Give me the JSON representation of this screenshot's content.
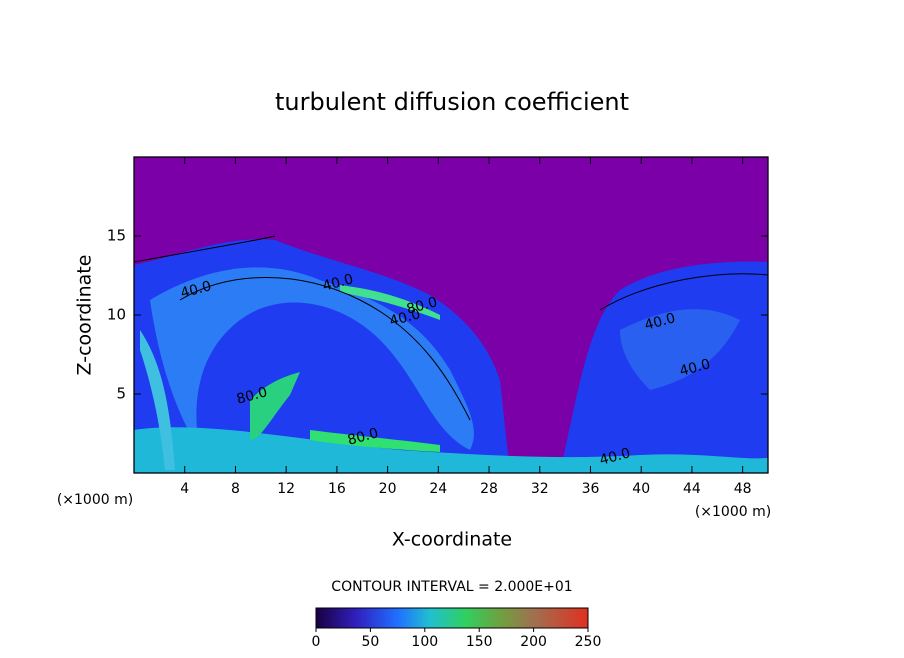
{
  "chart_data": {
    "type": "contour",
    "title": "turbulent diffusion coefficient",
    "x_label": "X-coordinate",
    "y_label": "Z-coordinate",
    "x_unit": "(×1000 m)",
    "y_unit": "(×1000 m)",
    "xlim": [
      0,
      50
    ],
    "ylim": [
      0,
      20
    ],
    "xticks": [
      4,
      8,
      12,
      16,
      20,
      24,
      28,
      32,
      36,
      40,
      44,
      48
    ],
    "yticks": [
      5,
      10,
      15
    ],
    "contour_labels": [
      "40.0",
      "40.0",
      "80.0",
      "40.0",
      "80.0",
      "80.0",
      "40.0",
      "40.0",
      "40.0"
    ],
    "contour_interval": "CONTOUR INTERVAL = 2.000E+01",
    "colorbar": {
      "lim": [
        0,
        250
      ],
      "ticks": [
        0,
        50,
        100,
        150,
        200,
        250
      ]
    }
  }
}
